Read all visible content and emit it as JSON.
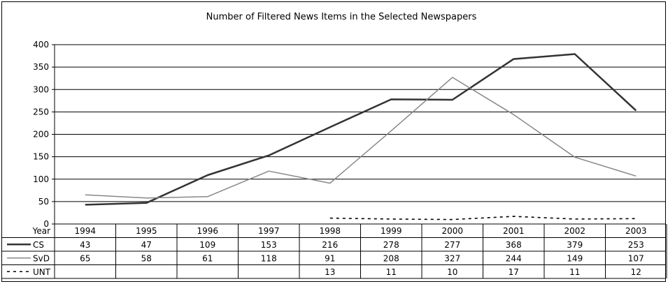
{
  "chart_data": {
    "type": "line",
    "title": "Number of Filtered News Items in the Selected Newspapers",
    "x_header": "Year",
    "categories": [
      "1994",
      "1995",
      "1996",
      "1997",
      "1998",
      "1999",
      "2000",
      "2001",
      "2002",
      "2003"
    ],
    "ylim": [
      0,
      400
    ],
    "yticks": [
      0,
      50,
      100,
      150,
      200,
      250,
      300,
      350,
      400
    ],
    "grid": true,
    "legend": "data-table-bottom",
    "series": [
      {
        "name": "CS",
        "color": "#333333",
        "style": "solid-thick",
        "values": [
          43,
          47,
          109,
          153,
          216,
          278,
          277,
          368,
          379,
          253
        ]
      },
      {
        "name": "SvD",
        "color": "#888888",
        "style": "solid-thin",
        "values": [
          65,
          58,
          61,
          118,
          91,
          208,
          327,
          244,
          149,
          107
        ]
      },
      {
        "name": "UNT",
        "color": "#000000",
        "style": "dashed",
        "values": [
          null,
          null,
          null,
          null,
          13,
          11,
          10,
          17,
          11,
          12
        ]
      }
    ]
  }
}
